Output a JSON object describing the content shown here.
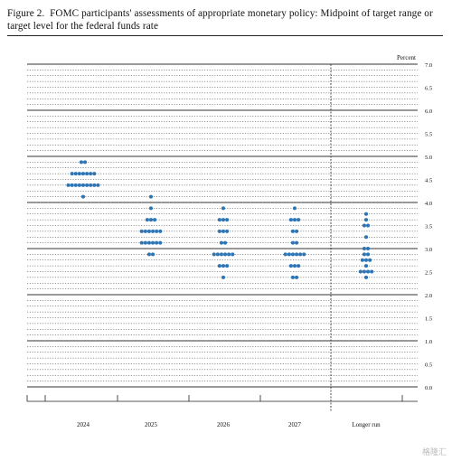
{
  "caption": {
    "figure_label": "Figure 2.",
    "text": "FOMC participants' assessments of appropriate monetary policy: Midpoint of target range or target level for the federal funds rate"
  },
  "watermark": "格隆汇",
  "colors": {
    "dot": "#2e75b6",
    "grid": "#333333",
    "text": "#111111"
  },
  "chart_data": {
    "type": "scatter",
    "title": "",
    "ylabel": "Percent",
    "ylim": [
      0.0,
      7.0
    ],
    "y_ticks": [
      "0.0",
      "0.5",
      "1.0",
      "1.5",
      "2.0",
      "2.5",
      "3.0",
      "3.5",
      "4.0",
      "4.5",
      "5.0",
      "5.5",
      "6.0",
      "6.5",
      "7.0"
    ],
    "grid": "solid at whole percents, dotted at 0.125 increments",
    "categories": [
      "2024",
      "2025",
      "2026",
      "2027",
      "Longer run"
    ],
    "separator_before": "Longer run",
    "series": [
      {
        "category": "2024",
        "points": [
          {
            "y": 4.875,
            "count": 2
          },
          {
            "y": 4.625,
            "count": 7
          },
          {
            "y": 4.375,
            "count": 9
          },
          {
            "y": 4.125,
            "count": 1
          }
        ]
      },
      {
        "category": "2025",
        "points": [
          {
            "y": 4.125,
            "count": 1
          },
          {
            "y": 3.875,
            "count": 1
          },
          {
            "y": 3.625,
            "count": 3
          },
          {
            "y": 3.375,
            "count": 6
          },
          {
            "y": 3.125,
            "count": 6
          },
          {
            "y": 2.875,
            "count": 2
          }
        ]
      },
      {
        "category": "2026",
        "points": [
          {
            "y": 3.875,
            "count": 1
          },
          {
            "y": 3.625,
            "count": 3
          },
          {
            "y": 3.375,
            "count": 3
          },
          {
            "y": 3.125,
            "count": 2
          },
          {
            "y": 2.875,
            "count": 6
          },
          {
            "y": 2.625,
            "count": 3
          },
          {
            "y": 2.375,
            "count": 1
          }
        ]
      },
      {
        "category": "2027",
        "points": [
          {
            "y": 3.875,
            "count": 1
          },
          {
            "y": 3.625,
            "count": 3
          },
          {
            "y": 3.375,
            "count": 2
          },
          {
            "y": 3.125,
            "count": 2
          },
          {
            "y": 2.875,
            "count": 6
          },
          {
            "y": 2.625,
            "count": 3
          },
          {
            "y": 2.375,
            "count": 2
          }
        ]
      },
      {
        "category": "Longer run",
        "points": [
          {
            "y": 3.75,
            "count": 1
          },
          {
            "y": 3.625,
            "count": 1
          },
          {
            "y": 3.5,
            "count": 2
          },
          {
            "y": 3.25,
            "count": 1
          },
          {
            "y": 3.0,
            "count": 2
          },
          {
            "y": 2.875,
            "count": 2
          },
          {
            "y": 2.75,
            "count": 3
          },
          {
            "y": 2.625,
            "count": 1
          },
          {
            "y": 2.5,
            "count": 4
          },
          {
            "y": 2.375,
            "count": 1
          }
        ]
      }
    ]
  }
}
